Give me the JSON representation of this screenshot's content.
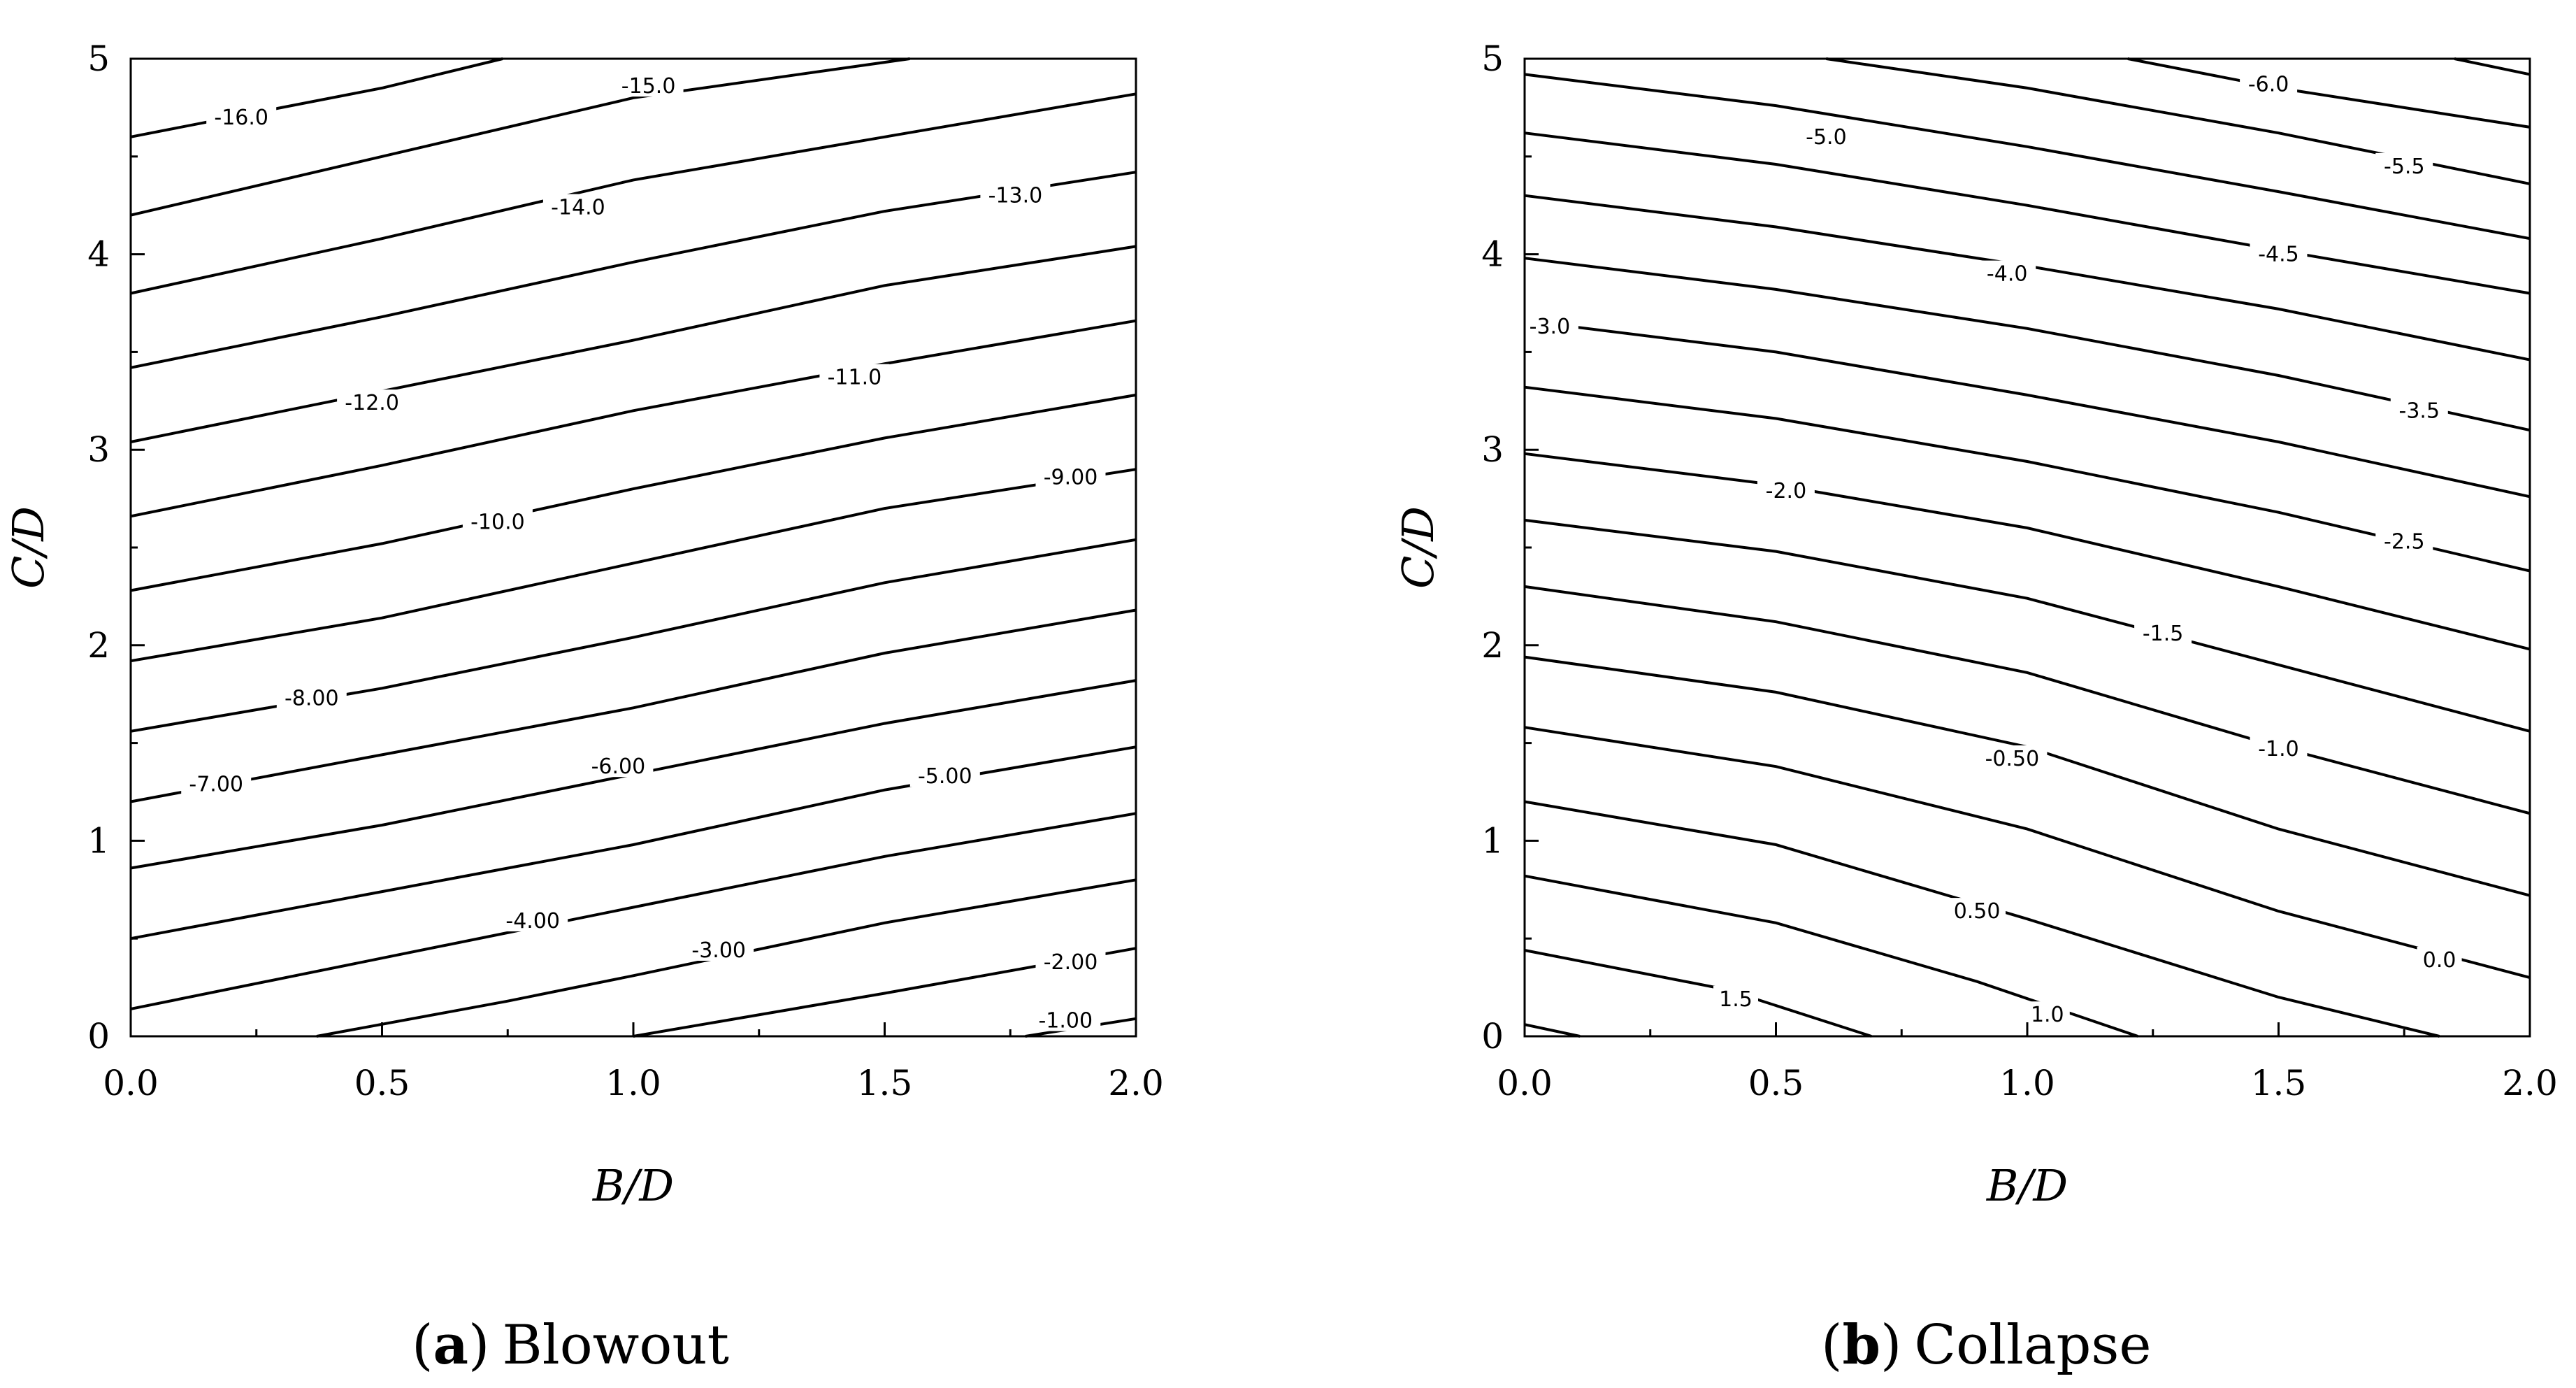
{
  "chart_data": [
    {
      "type": "contour",
      "title": "",
      "caption": {
        "open": "(",
        "letter": "a",
        "close": ")",
        "text": "Blowout"
      },
      "xlabel": "B/D",
      "ylabel": "C/D",
      "xlim": [
        0,
        2
      ],
      "ylim": [
        0,
        5
      ],
      "xticks": [
        "0.0",
        "0.5",
        "1.0",
        "1.5",
        "2.0"
      ],
      "yticks": [
        "0",
        "1",
        "2",
        "3",
        "4",
        "5"
      ],
      "grid": false,
      "contours": [
        {
          "level": "",
          "points": [
            [
              0,
              4.6
            ],
            [
              0.5,
              4.85
            ],
            [
              0.74,
              5.0
            ]
          ]
        },
        {
          "level": "",
          "points": [
            [
              0,
              4.2
            ],
            [
              0.5,
              4.5
            ],
            [
              1.0,
              4.8
            ],
            [
              1.55,
              5.0
            ]
          ]
        },
        {
          "level": "",
          "points": [
            [
              0,
              3.8
            ],
            [
              0.5,
              4.08
            ],
            [
              1.0,
              4.38
            ],
            [
              1.5,
              4.6
            ],
            [
              2.0,
              4.82
            ]
          ]
        },
        {
          "level": "",
          "points": [
            [
              0,
              3.42
            ],
            [
              0.5,
              3.68
            ],
            [
              1.0,
              3.96
            ],
            [
              1.5,
              4.22
            ],
            [
              2.0,
              4.42
            ]
          ]
        },
        {
          "level": "",
          "points": [
            [
              0,
              3.04
            ],
            [
              0.5,
              3.3
            ],
            [
              1.0,
              3.56
            ],
            [
              1.5,
              3.84
            ],
            [
              2.0,
              4.04
            ]
          ]
        },
        {
          "level": "",
          "points": [
            [
              0,
              2.66
            ],
            [
              0.5,
              2.92
            ],
            [
              1.0,
              3.2
            ],
            [
              1.5,
              3.44
            ],
            [
              2.0,
              3.66
            ]
          ]
        },
        {
          "level": "",
          "points": [
            [
              0,
              2.28
            ],
            [
              0.5,
              2.52
            ],
            [
              1.0,
              2.8
            ],
            [
              1.5,
              3.06
            ],
            [
              2.0,
              3.28
            ]
          ]
        },
        {
          "level": "",
          "points": [
            [
              0,
              1.92
            ],
            [
              0.5,
              2.14
            ],
            [
              1.0,
              2.42
            ],
            [
              1.5,
              2.7
            ],
            [
              2.0,
              2.9
            ]
          ]
        },
        {
          "level": "",
          "points": [
            [
              0,
              1.56
            ],
            [
              0.5,
              1.78
            ],
            [
              1.0,
              2.04
            ],
            [
              1.5,
              2.32
            ],
            [
              2.0,
              2.54
            ]
          ]
        },
        {
          "level": "",
          "points": [
            [
              0,
              1.2
            ],
            [
              0.5,
              1.44
            ],
            [
              1.0,
              1.68
            ],
            [
              1.5,
              1.96
            ],
            [
              2.0,
              2.18
            ]
          ]
        },
        {
          "level": "",
          "points": [
            [
              0,
              0.86
            ],
            [
              0.5,
              1.08
            ],
            [
              1.0,
              1.34
            ],
            [
              1.5,
              1.6
            ],
            [
              2.0,
              1.82
            ]
          ]
        },
        {
          "level": "",
          "points": [
            [
              0,
              0.5
            ],
            [
              0.5,
              0.74
            ],
            [
              1.0,
              0.98
            ],
            [
              1.5,
              1.26
            ],
            [
              2.0,
              1.48
            ]
          ]
        },
        {
          "level": "",
          "points": [
            [
              0,
              0.14
            ],
            [
              0.5,
              0.4
            ],
            [
              1.0,
              0.66
            ],
            [
              1.5,
              0.92
            ],
            [
              2.0,
              1.14
            ]
          ]
        },
        {
          "level": "",
          "points": [
            [
              0.37,
              0.0
            ],
            [
              0.75,
              0.18
            ],
            [
              1.0,
              0.31
            ],
            [
              1.5,
              0.58
            ],
            [
              2.0,
              0.8
            ]
          ]
        },
        {
          "level": "",
          "points": [
            [
              1.0,
              0.0
            ],
            [
              1.5,
              0.22
            ],
            [
              2.0,
              0.45
            ]
          ]
        },
        {
          "level": "",
          "points": [
            [
              1.78,
              0.0
            ],
            [
              2.0,
              0.09
            ]
          ]
        }
      ],
      "labels": [
        {
          "text": "-16.0",
          "x": 0.22,
          "y": 4.7
        },
        {
          "text": "-15.0",
          "x": 1.03,
          "y": 4.86
        },
        {
          "text": "-14.0",
          "x": 0.89,
          "y": 4.24
        },
        {
          "text": "-13.0",
          "x": 1.76,
          "y": 4.3
        },
        {
          "text": "-12.0",
          "x": 0.48,
          "y": 3.24
        },
        {
          "text": "-11.0",
          "x": 1.44,
          "y": 3.37
        },
        {
          "text": "-10.0",
          "x": 0.73,
          "y": 2.63
        },
        {
          "text": "-9.00",
          "x": 1.87,
          "y": 2.86
        },
        {
          "text": "-8.00",
          "x": 0.36,
          "y": 1.73
        },
        {
          "text": "-7.00",
          "x": 0.17,
          "y": 1.29
        },
        {
          "text": "-6.00",
          "x": 0.97,
          "y": 1.38
        },
        {
          "text": "-5.00",
          "x": 1.62,
          "y": 1.33
        },
        {
          "text": "-4.00",
          "x": 0.8,
          "y": 0.59
        },
        {
          "text": "-3.00",
          "x": 1.17,
          "y": 0.44
        },
        {
          "text": "-2.00",
          "x": 1.87,
          "y": 0.38
        },
        {
          "text": "-1.00",
          "x": 1.86,
          "y": 0.08
        }
      ]
    },
    {
      "type": "contour",
      "title": "",
      "caption": {
        "open": "(",
        "letter": "b",
        "close": ")",
        "text": "Collapse"
      },
      "xlabel": "B/D",
      "ylabel": "C/D",
      "xlim": [
        0,
        2
      ],
      "ylim": [
        0,
        5
      ],
      "xticks": [
        "0.0",
        "0.5",
        "1.0",
        "1.5",
        "2.0"
      ],
      "yticks": [
        "0",
        "1",
        "2",
        "3",
        "4",
        "5"
      ],
      "grid": false,
      "contours": [
        {
          "level": "",
          "points": [
            [
              1.85,
              5.0
            ],
            [
              2.0,
              4.92
            ]
          ]
        },
        {
          "level": "",
          "points": [
            [
              1.2,
              5.0
            ],
            [
              1.5,
              4.85
            ],
            [
              2.0,
              4.65
            ]
          ]
        },
        {
          "level": "",
          "points": [
            [
              0.6,
              5.0
            ],
            [
              1.0,
              4.85
            ],
            [
              1.5,
              4.62
            ],
            [
              2.0,
              4.36
            ]
          ]
        },
        {
          "level": "",
          "points": [
            [
              0,
              4.92
            ],
            [
              0.5,
              4.76
            ],
            [
              1.0,
              4.55
            ],
            [
              1.5,
              4.32
            ],
            [
              2.0,
              4.08
            ]
          ]
        },
        {
          "level": "",
          "points": [
            [
              0,
              4.62
            ],
            [
              0.5,
              4.46
            ],
            [
              1.0,
              4.25
            ],
            [
              1.5,
              4.02
            ],
            [
              2.0,
              3.8
            ]
          ]
        },
        {
          "level": "",
          "points": [
            [
              0,
              4.3
            ],
            [
              0.5,
              4.14
            ],
            [
              1.0,
              3.94
            ],
            [
              1.5,
              3.72
            ],
            [
              2.0,
              3.46
            ]
          ]
        },
        {
          "level": "",
          "points": [
            [
              0,
              3.98
            ],
            [
              0.5,
              3.82
            ],
            [
              1.0,
              3.62
            ],
            [
              1.5,
              3.38
            ],
            [
              2.0,
              3.1
            ]
          ]
        },
        {
          "level": "",
          "points": [
            [
              0,
              3.66
            ],
            [
              0.5,
              3.5
            ],
            [
              1.0,
              3.28
            ],
            [
              1.5,
              3.04
            ],
            [
              2.0,
              2.76
            ]
          ]
        },
        {
          "level": "",
          "points": [
            [
              0,
              3.32
            ],
            [
              0.5,
              3.16
            ],
            [
              1.0,
              2.94
            ],
            [
              1.5,
              2.68
            ],
            [
              2.0,
              2.38
            ]
          ]
        },
        {
          "level": "",
          "points": [
            [
              0,
              2.98
            ],
            [
              0.5,
              2.82
            ],
            [
              1.0,
              2.6
            ],
            [
              1.5,
              2.3
            ],
            [
              2.0,
              1.98
            ]
          ]
        },
        {
          "level": "",
          "points": [
            [
              0,
              2.64
            ],
            [
              0.5,
              2.48
            ],
            [
              1.0,
              2.24
            ],
            [
              1.5,
              1.9
            ],
            [
              2.0,
              1.56
            ]
          ]
        },
        {
          "level": "",
          "points": [
            [
              0,
              2.3
            ],
            [
              0.5,
              2.12
            ],
            [
              1.0,
              1.86
            ],
            [
              1.5,
              1.48
            ],
            [
              2.0,
              1.14
            ]
          ]
        },
        {
          "level": "",
          "points": [
            [
              0,
              1.94
            ],
            [
              0.5,
              1.76
            ],
            [
              1.0,
              1.48
            ],
            [
              1.5,
              1.06
            ],
            [
              2.0,
              0.72
            ]
          ]
        },
        {
          "level": "",
          "points": [
            [
              0,
              1.58
            ],
            [
              0.5,
              1.38
            ],
            [
              1.0,
              1.06
            ],
            [
              1.5,
              0.64
            ],
            [
              2.0,
              0.3
            ]
          ]
        },
        {
          "level": "",
          "points": [
            [
              0,
              1.2
            ],
            [
              0.5,
              0.98
            ],
            [
              1.0,
              0.6
            ],
            [
              1.5,
              0.2
            ],
            [
              1.82,
              0.0
            ]
          ]
        },
        {
          "level": "",
          "points": [
            [
              0,
              0.82
            ],
            [
              0.5,
              0.58
            ],
            [
              0.9,
              0.28
            ],
            [
              1.22,
              0.0
            ]
          ]
        },
        {
          "level": "",
          "points": [
            [
              0,
              0.44
            ],
            [
              0.4,
              0.24
            ],
            [
              0.69,
              0.0
            ]
          ]
        },
        {
          "level": "",
          "points": [
            [
              0,
              0.06
            ],
            [
              0.11,
              0.0
            ]
          ]
        }
      ],
      "labels": [
        {
          "text": "-6.0",
          "x": 1.48,
          "y": 4.87
        },
        {
          "text": "-5.0",
          "x": 0.6,
          "y": 4.6
        },
        {
          "text": "-5.5",
          "x": 1.75,
          "y": 4.45
        },
        {
          "text": "-4.5",
          "x": 1.5,
          "y": 4.0
        },
        {
          "text": "-4.0",
          "x": 0.96,
          "y": 3.9
        },
        {
          "text": "-3.0",
          "x": 0.05,
          "y": 3.63
        },
        {
          "text": "-3.5",
          "x": 1.78,
          "y": 3.2
        },
        {
          "text": "-2.0",
          "x": 0.52,
          "y": 2.79
        },
        {
          "text": "-2.5",
          "x": 1.75,
          "y": 2.53
        },
        {
          "text": "-1.5",
          "x": 1.27,
          "y": 2.06
        },
        {
          "text": "-1.0",
          "x": 1.5,
          "y": 1.47
        },
        {
          "text": "-0.50",
          "x": 0.97,
          "y": 1.42
        },
        {
          "text": "0.50",
          "x": 0.9,
          "y": 0.64
        },
        {
          "text": "0.0",
          "x": 1.82,
          "y": 0.39
        },
        {
          "text": "1.5",
          "x": 0.42,
          "y": 0.19
        },
        {
          "text": "1.0",
          "x": 1.04,
          "y": 0.11
        }
      ]
    }
  ]
}
